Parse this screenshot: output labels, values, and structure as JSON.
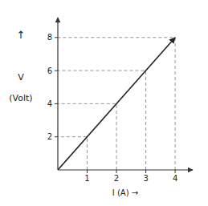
{
  "chart_data": {
    "type": "line",
    "x": [
      0,
      4
    ],
    "series": [
      {
        "name": "V",
        "color": "#222222",
        "values": [
          0,
          8
        ]
      }
    ],
    "guide_x": [
      1,
      2,
      3,
      4
    ],
    "guide_y": [
      2,
      4,
      6,
      8
    ],
    "xlim": [
      0,
      4.6
    ],
    "ylim": [
      0,
      9.2
    ],
    "xticks": [
      1,
      2,
      3,
      4
    ],
    "yticks": [
      2,
      4,
      6,
      8
    ],
    "xlabel": "I (A) →",
    "ylabel": [
      "↑",
      "V",
      "(Volt)"
    ]
  }
}
